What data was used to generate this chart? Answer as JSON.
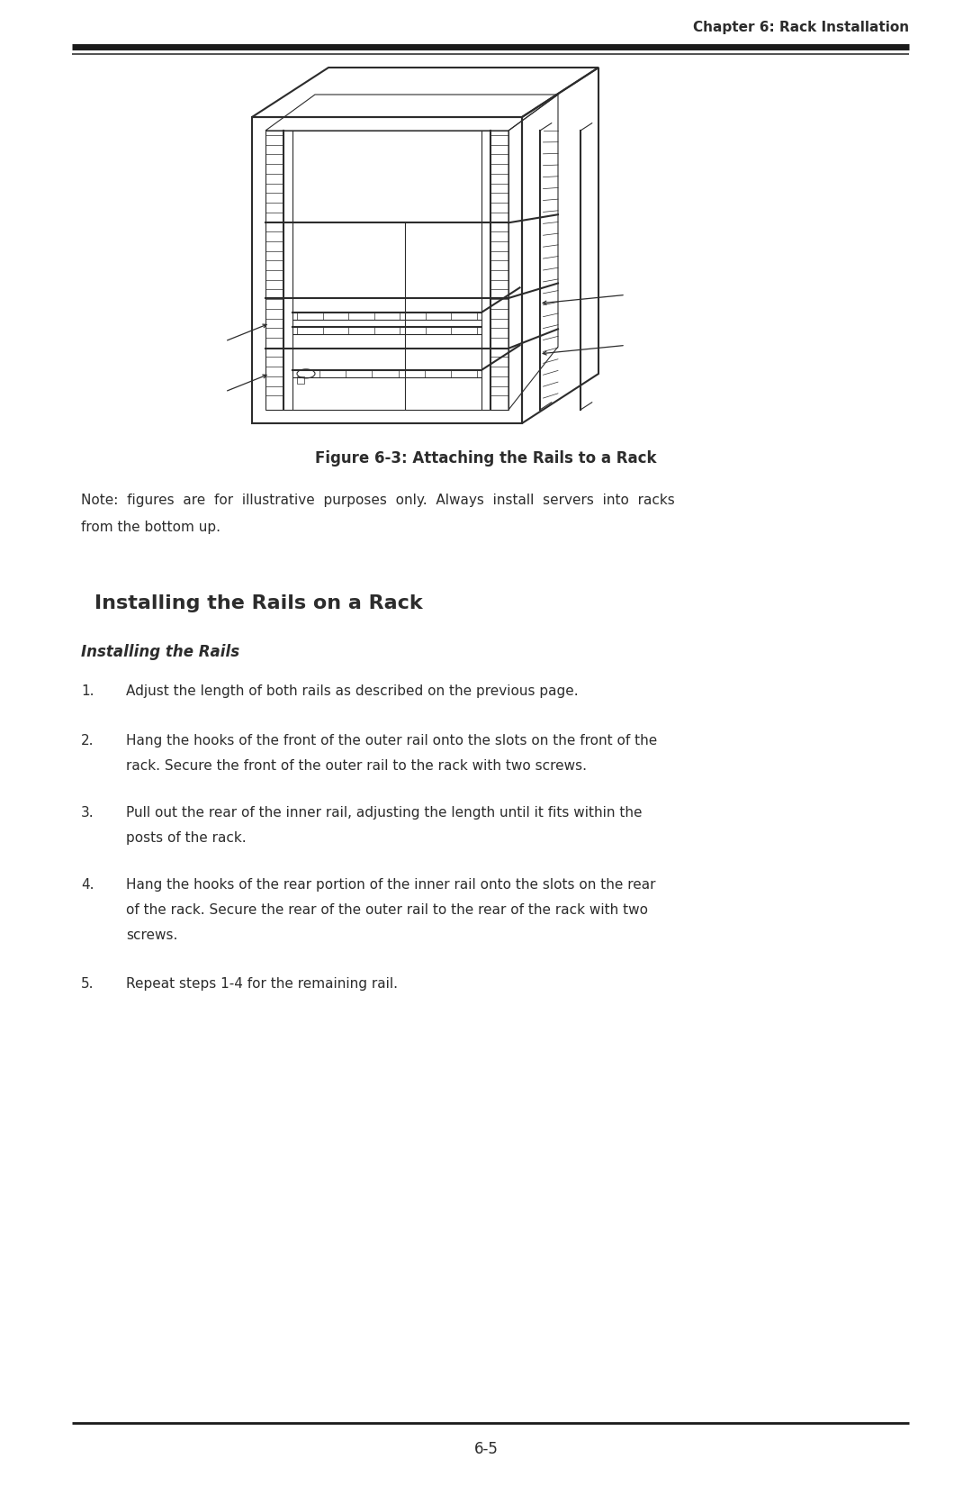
{
  "header_text": "Chapter 6: Rack Installation",
  "figure_caption": "Figure 6-3: Attaching the Rails to a Rack",
  "note_line1": "Note:  figures  are  for  illustrative  purposes  only.  Always  install  servers  into  racks",
  "note_line2": "from the bottom up.",
  "section_title": "Installing the Rails on a Rack",
  "subsection_title": "Installing the Rails",
  "step1": "Adjust the length of both rails as described on the previous page.",
  "step2a": "Hang the hooks of the front of the outer rail onto the slots on the front of the",
  "step2b": "rack. Secure the front of the outer rail to the rack with two screws.",
  "step3a": "Pull out the rear of the inner rail, adjusting the length until it fits within the",
  "step3b": "posts of the rack.",
  "step4a": "Hang the hooks of the rear portion of the inner rail onto the slots on the rear",
  "step4b": "of the rack. Secure the rear of the outer rail to the rear of the rack with two",
  "step4c": "screws.",
  "step5": "Repeat steps 1-4 for the remaining rail.",
  "footer_text": "6-5",
  "bg_color": "#ffffff",
  "text_color": "#2c2c2c",
  "line_color": "#1a1a1a"
}
